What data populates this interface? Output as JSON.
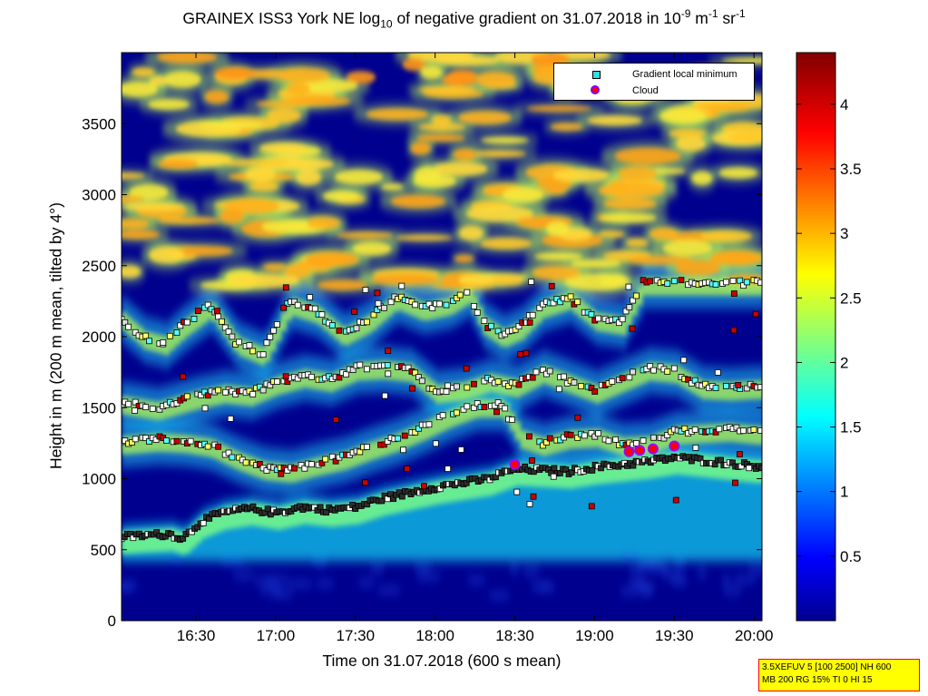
{
  "chart_data": {
    "type": "heatmap",
    "title": "GRAINEX ISS3 York NE log10 of negative gradient on 31.07.2018 in 10-9 m-1 sr-1",
    "title_parts": {
      "main": "GRAINEX ISS3 York NE log",
      "sub": "10",
      "rest": " of negative gradient on 31.07.2018 in 10",
      "exp1": "-9",
      "unit1": " m",
      "exp2": "-1",
      "unit2": " sr",
      "exp3": "-1"
    },
    "xlabel": "Time on 31.07.2018 (600 s mean)",
    "ylabel": "Height in m (200 m mean, tilted by 4°)",
    "x_range_minutes": [
      1000,
      1203
    ],
    "x_ticks": [
      {
        "label": "16:30",
        "minutes": 990
      },
      {
        "label": "17:00",
        "minutes": 1020
      },
      {
        "label": "17:30",
        "minutes": 1050
      },
      {
        "label": "18:00",
        "minutes": 1080
      },
      {
        "label": "18:30",
        "minutes": 1110
      },
      {
        "label": "19:00",
        "minutes": 1140
      },
      {
        "label": "19:30",
        "minutes": 1170
      },
      {
        "label": "20:00",
        "minutes": 1200
      }
    ],
    "ylim": [
      0,
      4000
    ],
    "y_ticks": [
      0,
      500,
      1000,
      1500,
      2000,
      2500,
      3000,
      3500
    ],
    "colorbar": {
      "range": [
        0,
        4.4
      ],
      "ticks": [
        0.5,
        1,
        1.5,
        2,
        2.5,
        3,
        3.5,
        4
      ],
      "colormap": "jet"
    },
    "legend": {
      "placement": "top-right",
      "entries": [
        {
          "label": "Gradient local minimum",
          "marker": "square",
          "color": "#33dddd"
        },
        {
          "label": "Cloud",
          "marker": "circle",
          "color": "#ff0000"
        }
      ]
    },
    "layers": [
      {
        "name": "boundary layer top",
        "points": [
          [
            962,
            590
          ],
          [
            970,
            600
          ],
          [
            980,
            610
          ],
          [
            985,
            580
          ],
          [
            992,
            700
          ],
          [
            1000,
            760
          ],
          [
            1010,
            790
          ],
          [
            1020,
            760
          ],
          [
            1030,
            800
          ],
          [
            1040,
            780
          ],
          [
            1050,
            800
          ],
          [
            1060,
            860
          ],
          [
            1070,
            900
          ],
          [
            1080,
            940
          ],
          [
            1090,
            970
          ],
          [
            1100,
            1000
          ],
          [
            1110,
            1070
          ],
          [
            1120,
            1060
          ],
          [
            1130,
            1050
          ],
          [
            1140,
            1080
          ],
          [
            1150,
            1100
          ],
          [
            1160,
            1120
          ],
          [
            1170,
            1150
          ],
          [
            1180,
            1130
          ],
          [
            1190,
            1110
          ],
          [
            1200,
            1090
          ]
        ]
      },
      {
        "name": "layer 2",
        "points": [
          [
            962,
            1260
          ],
          [
            975,
            1280
          ],
          [
            985,
            1270
          ],
          [
            995,
            1240
          ],
          [
            1005,
            1150
          ],
          [
            1015,
            1080
          ],
          [
            1025,
            1060
          ],
          [
            1035,
            1110
          ],
          [
            1045,
            1150
          ],
          [
            1055,
            1220
          ],
          [
            1065,
            1280
          ],
          [
            1075,
            1360
          ],
          [
            1085,
            1450
          ],
          [
            1095,
            1520
          ],
          [
            1105,
            1520
          ],
          [
            1112,
            1300
          ],
          [
            1120,
            1250
          ],
          [
            1130,
            1300
          ],
          [
            1140,
            1310
          ],
          [
            1150,
            1250
          ],
          [
            1160,
            1260
          ],
          [
            1170,
            1330
          ],
          [
            1180,
            1340
          ],
          [
            1190,
            1350
          ],
          [
            1200,
            1330
          ]
        ]
      },
      {
        "name": "layer 3",
        "points": [
          [
            962,
            1540
          ],
          [
            975,
            1500
          ],
          [
            990,
            1580
          ],
          [
            1000,
            1620
          ],
          [
            1010,
            1600
          ],
          [
            1020,
            1680
          ],
          [
            1030,
            1730
          ],
          [
            1040,
            1700
          ],
          [
            1050,
            1780
          ],
          [
            1060,
            1790
          ],
          [
            1070,
            1770
          ],
          [
            1080,
            1620
          ],
          [
            1090,
            1640
          ],
          [
            1100,
            1700
          ],
          [
            1110,
            1660
          ],
          [
            1120,
            1760
          ],
          [
            1130,
            1690
          ],
          [
            1140,
            1620
          ],
          [
            1150,
            1700
          ],
          [
            1160,
            1780
          ],
          [
            1170,
            1760
          ],
          [
            1180,
            1650
          ],
          [
            1190,
            1640
          ],
          [
            1200,
            1650
          ]
        ]
      },
      {
        "name": "layer 4",
        "points": [
          [
            962,
            2130
          ],
          [
            970,
            2000
          ],
          [
            978,
            1960
          ],
          [
            985,
            2080
          ],
          [
            995,
            2220
          ],
          [
            1005,
            1960
          ],
          [
            1015,
            1880
          ],
          [
            1025,
            2240
          ],
          [
            1035,
            2180
          ],
          [
            1045,
            2020
          ],
          [
            1055,
            2120
          ],
          [
            1065,
            2280
          ],
          [
            1075,
            2200
          ],
          [
            1085,
            2240
          ],
          [
            1092,
            2320
          ],
          [
            1098,
            2100
          ],
          [
            1105,
            2010
          ],
          [
            1112,
            2070
          ],
          [
            1120,
            2220
          ],
          [
            1130,
            2280
          ],
          [
            1140,
            2130
          ],
          [
            1150,
            2100
          ],
          [
            1158,
            2380
          ]
        ]
      }
    ],
    "clouds": [
      [
        1110,
        1100
      ],
      [
        1153,
        1190
      ],
      [
        1157,
        1200
      ],
      [
        1162,
        1210
      ],
      [
        1170,
        1230
      ]
    ],
    "annotations": []
  },
  "info_box": {
    "line1": "3.5XEFUV 5 [100 2500] NH 600",
    "line2": "MB 200 RG 15% TI 0 HI 15"
  }
}
